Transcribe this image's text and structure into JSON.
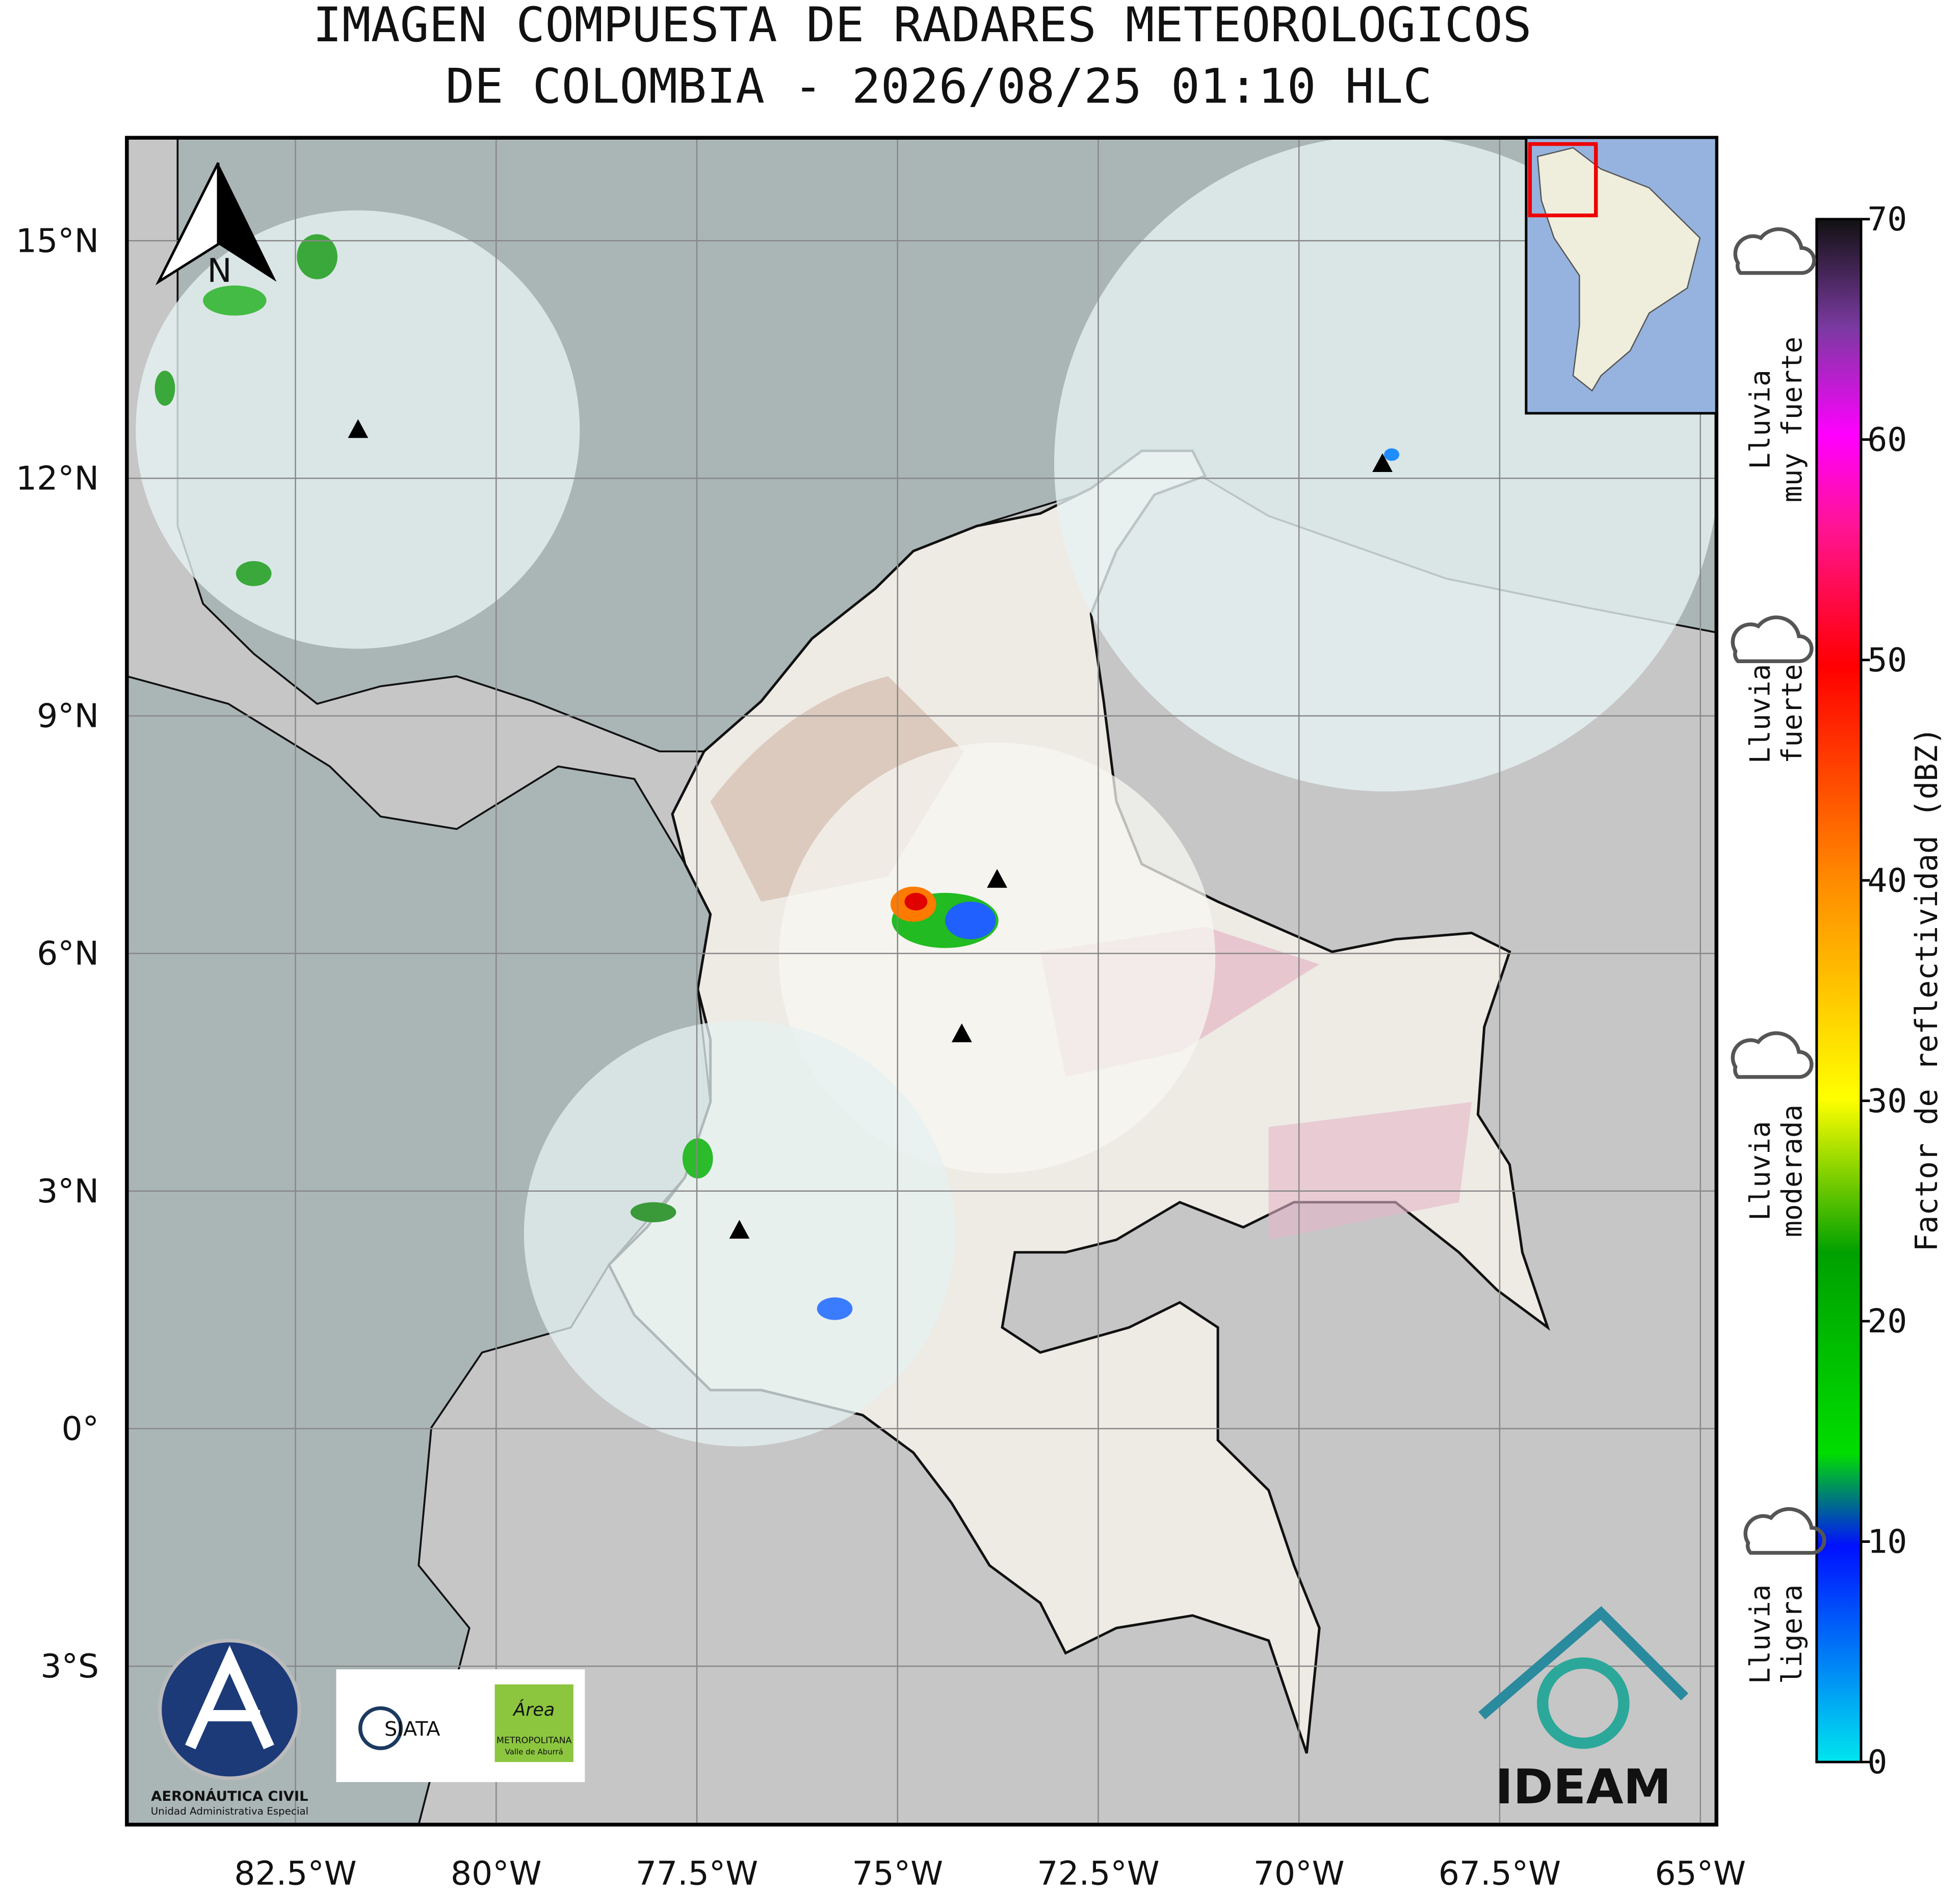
{
  "title": [
    "IMAGEN COMPUESTA DE RADARES METEOROLOGICOS",
    "DE COLOMBIA - 2026/08/25 01:10 HLC"
  ],
  "map": {
    "xlim": [
      -84.6,
      -64.8
    ],
    "ylim": [
      -5,
      16.3
    ],
    "xticks": [
      {
        "value": -82.5,
        "label": "82.5°W"
      },
      {
        "value": -80,
        "label": "80°W"
      },
      {
        "value": -77.5,
        "label": "77.5°W"
      },
      {
        "value": -75,
        "label": "75°W"
      },
      {
        "value": -72.5,
        "label": "72.5°W"
      },
      {
        "value": -70,
        "label": "70°W"
      },
      {
        "value": -67.5,
        "label": "67.5°W"
      },
      {
        "value": -65,
        "label": "65°W"
      }
    ],
    "yticks": [
      {
        "value": 15,
        "label": "15°N"
      },
      {
        "value": 12,
        "label": "12°N"
      },
      {
        "value": 9,
        "label": "9°N"
      },
      {
        "value": 6,
        "label": "6°N"
      },
      {
        "value": 3,
        "label": "3°N"
      },
      {
        "value": 0,
        "label": "0°"
      },
      {
        "value": -3,
        "label": "3°S"
      }
    ],
    "grid": true,
    "north": "N",
    "radars": [
      {
        "lon": -81.72,
        "lat": 12.62
      },
      {
        "lon": -68.96,
        "lat": 12.19
      },
      {
        "lon": -73.76,
        "lat": 6.94
      },
      {
        "lon": -74.2,
        "lat": 4.99
      },
      {
        "lon": -76.97,
        "lat": 2.51
      }
    ]
  },
  "colorbar": {
    "label": "Factor de reflectividad (dBZ)",
    "lim": [
      0,
      70
    ],
    "ticks": [
      0,
      10,
      20,
      30,
      40,
      50,
      60,
      70
    ]
  },
  "rain_levels": [
    {
      "lines": [
        "Lluvia",
        "muy fuerte"
      ]
    },
    {
      "lines": [
        "Lluvia",
        "fuerte"
      ]
    },
    {
      "lines": [
        "Lluvia",
        "moderada"
      ]
    },
    {
      "lines": [
        "Lluvia",
        "ligera"
      ]
    }
  ],
  "logos": {
    "aerocivil": [
      "AERONÁUTICA CIVIL",
      "Unidad Administrativa Especial"
    ],
    "siata": "SIATA",
    "area": [
      "Área",
      "METROPOLITANA",
      "Valle de Aburrá"
    ],
    "ideam": "IDEAM"
  }
}
